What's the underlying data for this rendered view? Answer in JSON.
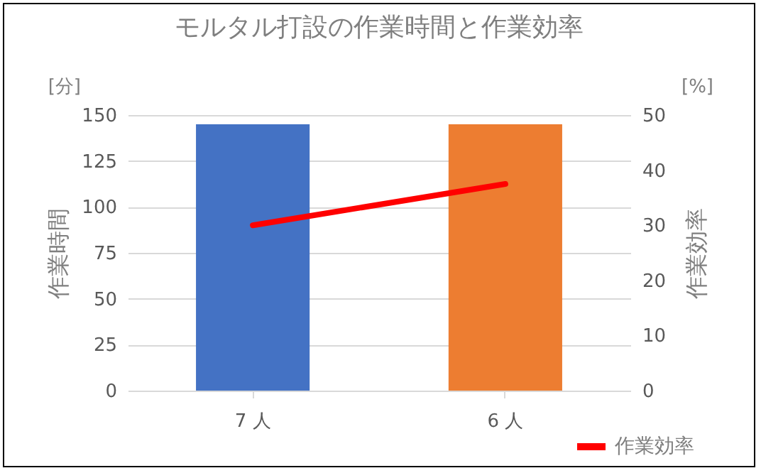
{
  "chart_data": {
    "type": "bar",
    "title": "モルタル打設の作業時間と作業効率",
    "categories": [
      "7 人",
      "6 人"
    ],
    "series": [
      {
        "colors": [
          "#4472c4",
          "#ed7d31"
        ],
        "values": [
          145,
          145
        ]
      },
      {
        "type": "line",
        "name": "作業効率",
        "color": "#ff0000",
        "axis": "y2",
        "values": [
          30,
          37.5
        ]
      }
    ],
    "ylabel": "作業時間",
    "y2label": "作業効率",
    "annotations": [
      "[分]",
      "[%]"
    ],
    "ylim": [
      0,
      150
    ],
    "yticks": [
      0,
      25,
      50,
      75,
      100,
      125,
      150
    ],
    "y2lim": [
      0,
      50
    ],
    "y2ticks": [
      0,
      10,
      20,
      30,
      40,
      50
    ],
    "grid": "y",
    "legend": "bottom right"
  }
}
